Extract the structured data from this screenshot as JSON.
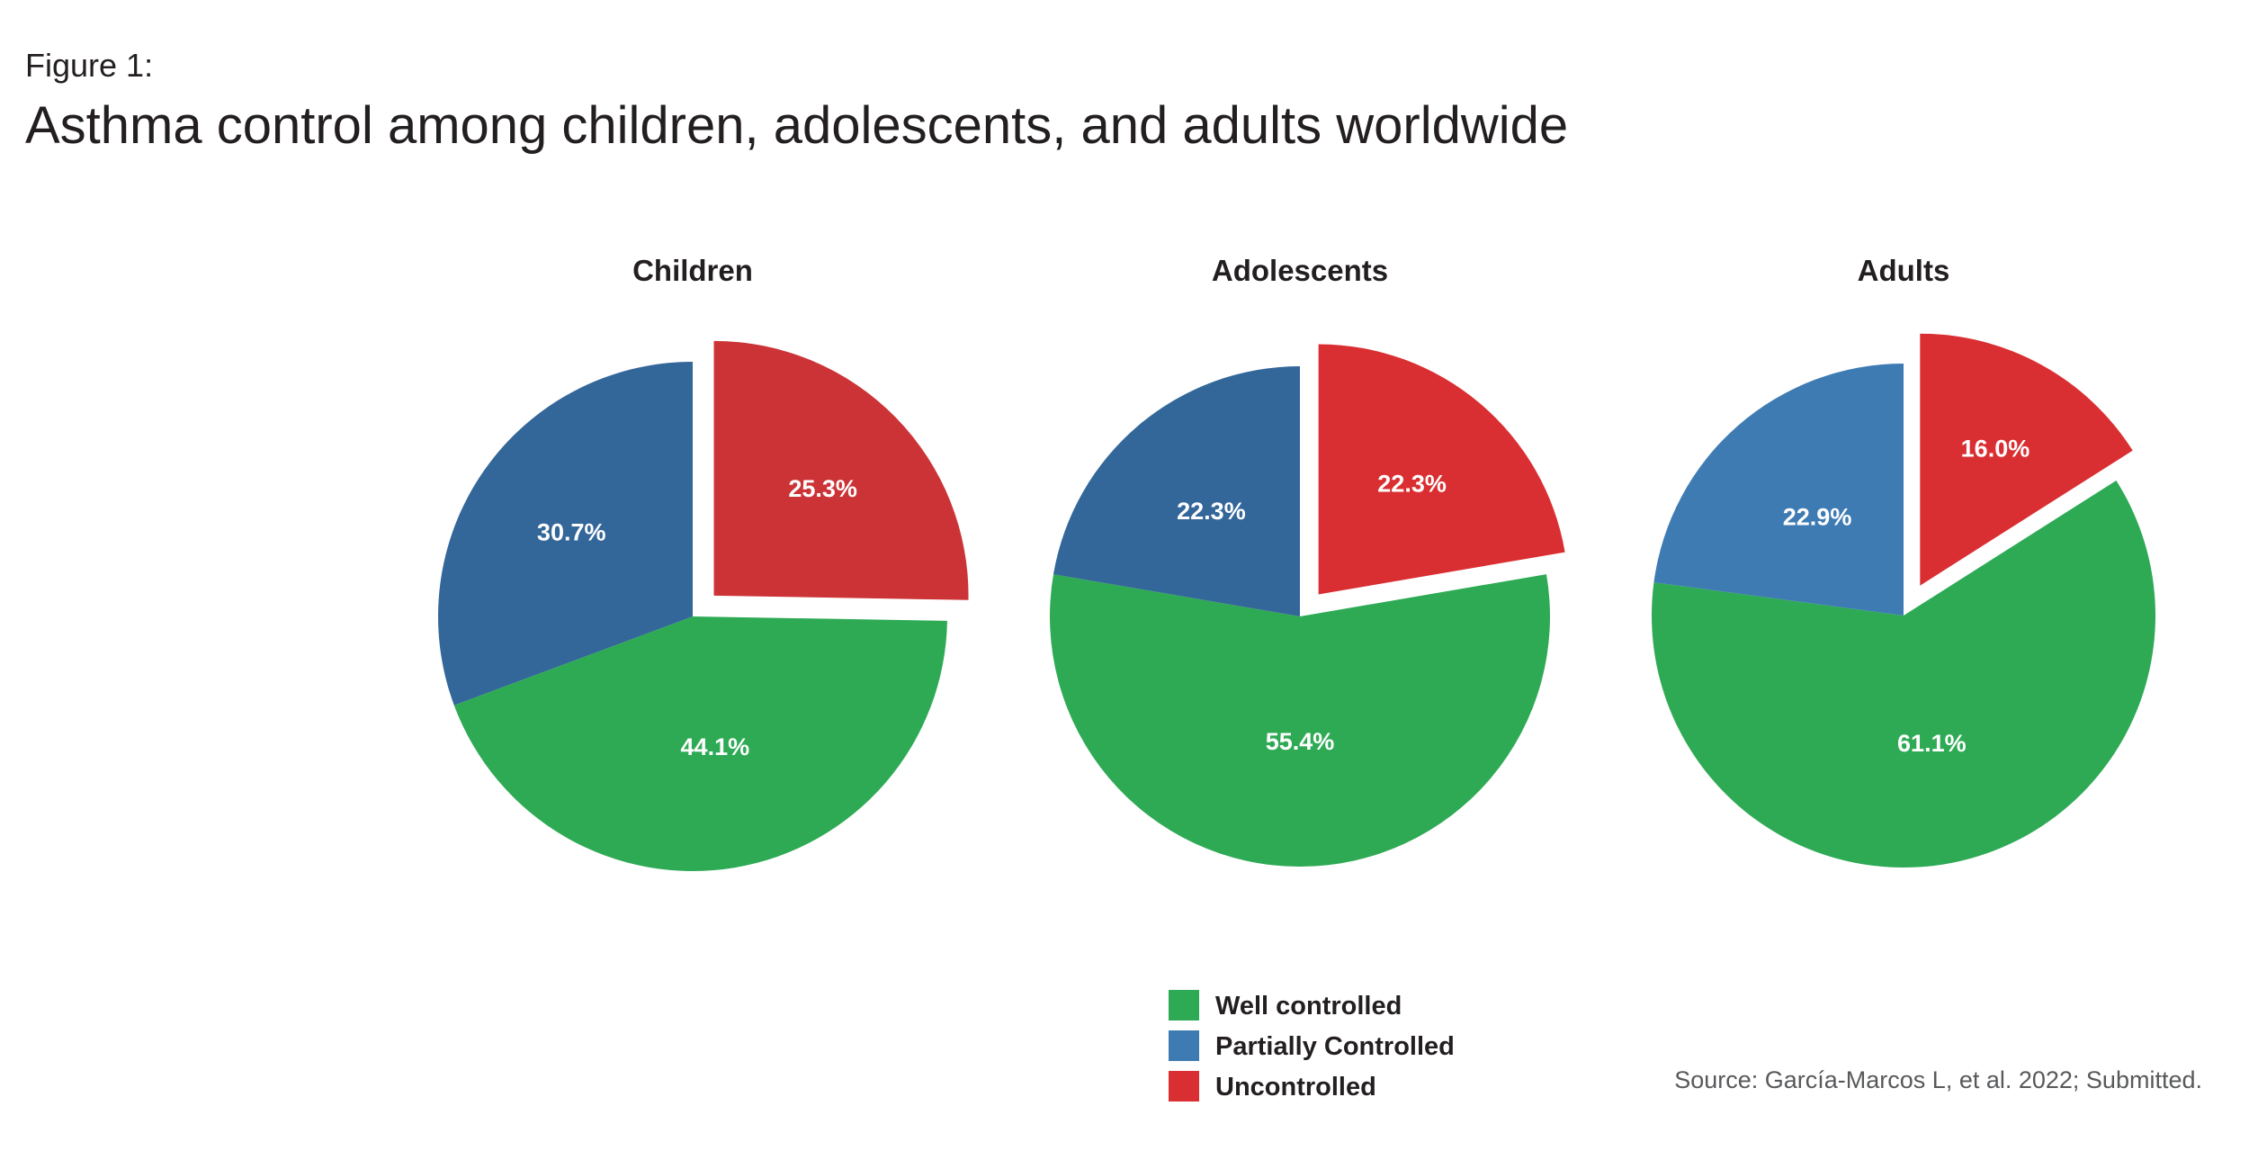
{
  "figure_label": "Figure 1:",
  "title": "Asthma control among children, adolescents, and adults worldwide",
  "source": "Source: García-Marcos L, et al. 2022; Submitted.",
  "colors": {
    "well_controlled": "#2eaa55",
    "partially_controlled_dark": "#336699",
    "partially_controlled_light": "#3e7bb3",
    "uncontrolled_children": "#cc3337",
    "uncontrolled": "#da2f32"
  },
  "chart_data": [
    {
      "type": "pie",
      "title": "Children",
      "slices": [
        {
          "label": "Uncontrolled",
          "value": 25.3,
          "text": "25.3%",
          "color": "#cc3337",
          "exploded": true
        },
        {
          "label": "Well controlled",
          "value": 44.1,
          "text": "44.1%",
          "color": "#2eaa55",
          "exploded": false
        },
        {
          "label": "Partially Controlled",
          "value": 30.7,
          "text": "30.7%",
          "color": "#336699",
          "exploded": false
        }
      ]
    },
    {
      "type": "pie",
      "title": "Adolescents",
      "slices": [
        {
          "label": "Uncontrolled",
          "value": 22.3,
          "text": "22.3%",
          "color": "#da2f32",
          "exploded": true
        },
        {
          "label": "Well controlled",
          "value": 55.4,
          "text": "55.4%",
          "color": "#2eaa55",
          "exploded": false
        },
        {
          "label": "Partially Controlled",
          "value": 22.3,
          "text": "22.3%",
          "color": "#336699",
          "exploded": false
        }
      ]
    },
    {
      "type": "pie",
      "title": "Adults",
      "slices": [
        {
          "label": "Uncontrolled",
          "value": 16.0,
          "text": "16.0%",
          "color": "#da2f32",
          "exploded": true
        },
        {
          "label": "Well controlled",
          "value": 61.1,
          "text": "61.1%",
          "color": "#2eaa55",
          "exploded": false
        },
        {
          "label": "Partially Controlled",
          "value": 22.9,
          "text": "22.9%",
          "color": "#3e7bb3",
          "exploded": false
        }
      ]
    }
  ],
  "legend": {
    "placement": "bottom-center",
    "items": [
      {
        "label": "Well controlled",
        "color": "#2eaa55"
      },
      {
        "label": "Partially Controlled",
        "color": "#3e7bb3"
      },
      {
        "label": "Uncontrolled",
        "color": "#da2f32"
      }
    ]
  }
}
